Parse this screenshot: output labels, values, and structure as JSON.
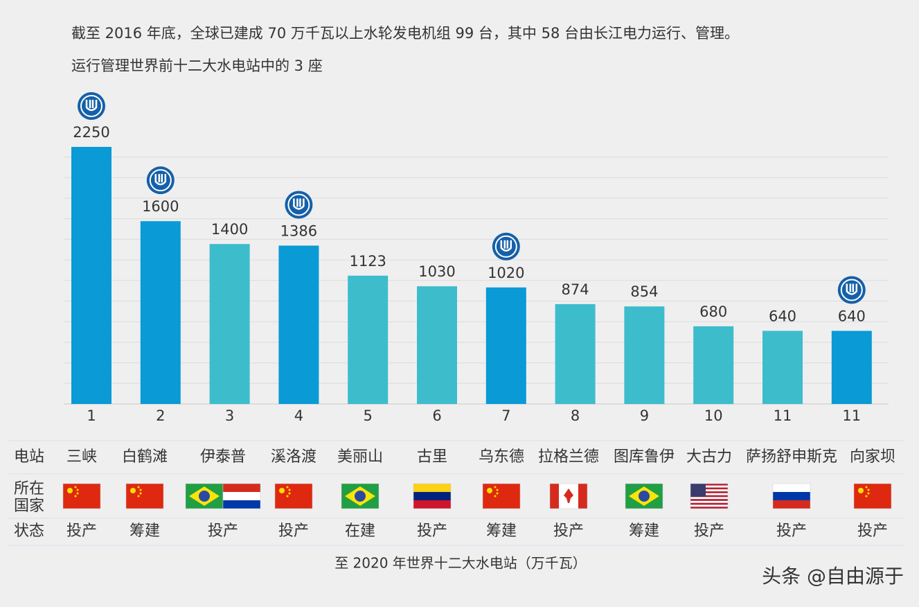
{
  "header": {
    "line1": "截至 2016 年底，全球已建成 70 万千瓦以上水轮发电机组 99 台，其中 58 台由长江电力运行、管理。",
    "line2": "运行管理世界前十二大水电站中的 3 座"
  },
  "chart_data": {
    "type": "bar",
    "categories": [
      "1",
      "2",
      "3",
      "4",
      "5",
      "6",
      "7",
      "8",
      "9",
      "10",
      "11",
      "11"
    ],
    "values": [
      2250,
      1600,
      1400,
      1386,
      1123,
      1030,
      1020,
      874,
      854,
      680,
      640,
      640
    ],
    "colors": [
      "#0a9ad5",
      "#0a9ad5",
      "#3dbccc",
      "#0a9ad5",
      "#3dbccc",
      "#3dbccc",
      "#0a9ad5",
      "#3dbccc",
      "#3dbccc",
      "#3dbccc",
      "#3dbccc",
      "#0a9ad5"
    ],
    "ylim": [
      0,
      2400
    ],
    "grid": true
  },
  "table": {
    "row_labels": [
      "电站",
      "所在国家",
      "状态"
    ],
    "stations": [
      "三峡",
      "白鹤滩",
      "伊泰普",
      "溪洛渡",
      "美丽山",
      "古里",
      "乌东德",
      "拉格兰德",
      "图库鲁伊",
      "大古力",
      "萨扬舒申斯克",
      "向家坝"
    ],
    "status": [
      "投产",
      "筹建",
      "投产",
      "投产",
      "在建",
      "投产",
      "筹建",
      "投产",
      "筹建",
      "投产",
      "投产",
      "投产"
    ]
  },
  "caption": "至 2020 年世界十二大水电站（万千瓦）",
  "watermark": "头条 @自由源于"
}
